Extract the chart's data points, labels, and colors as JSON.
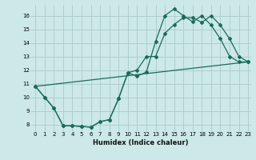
{
  "xlabel": "Humidex (Indice chaleur)",
  "bg_color": "#cce8e8",
  "grid_color": "#aacccc",
  "line_color": "#1a6b5a",
  "xlim": [
    -0.5,
    23.3
  ],
  "ylim": [
    7.5,
    16.8
  ],
  "xticks": [
    0,
    1,
    2,
    3,
    4,
    5,
    6,
    7,
    8,
    9,
    10,
    11,
    12,
    13,
    14,
    15,
    16,
    17,
    18,
    19,
    20,
    21,
    22,
    23
  ],
  "yticks": [
    8,
    9,
    10,
    11,
    12,
    13,
    14,
    15,
    16
  ],
  "line1_x": [
    0,
    1,
    2,
    3,
    4,
    5,
    6,
    7,
    8,
    9,
    10,
    11,
    12,
    13,
    14,
    15,
    16,
    17,
    18,
    19,
    20,
    21,
    22,
    23
  ],
  "line1_y": [
    10.8,
    10.0,
    9.2,
    7.9,
    7.9,
    7.85,
    7.8,
    8.2,
    8.35,
    9.9,
    11.8,
    11.55,
    11.85,
    14.1,
    16.0,
    16.5,
    16.0,
    15.55,
    16.0,
    15.3,
    14.3,
    13.0,
    12.6,
    12.6
  ],
  "line2_x": [
    0,
    1,
    2,
    3,
    4,
    5,
    6,
    7,
    8,
    9,
    10,
    11,
    12,
    13,
    14,
    15,
    16,
    17,
    18,
    19,
    20,
    21,
    22,
    23
  ],
  "line2_y": [
    10.8,
    10.0,
    9.2,
    7.9,
    7.9,
    7.85,
    7.8,
    8.2,
    8.35,
    9.9,
    11.8,
    12.0,
    13.0,
    13.0,
    14.7,
    15.35,
    15.85,
    15.85,
    15.5,
    16.0,
    15.3,
    14.3,
    13.0,
    12.6
  ],
  "line3_x": [
    0,
    23
  ],
  "line3_y": [
    10.8,
    12.6
  ]
}
